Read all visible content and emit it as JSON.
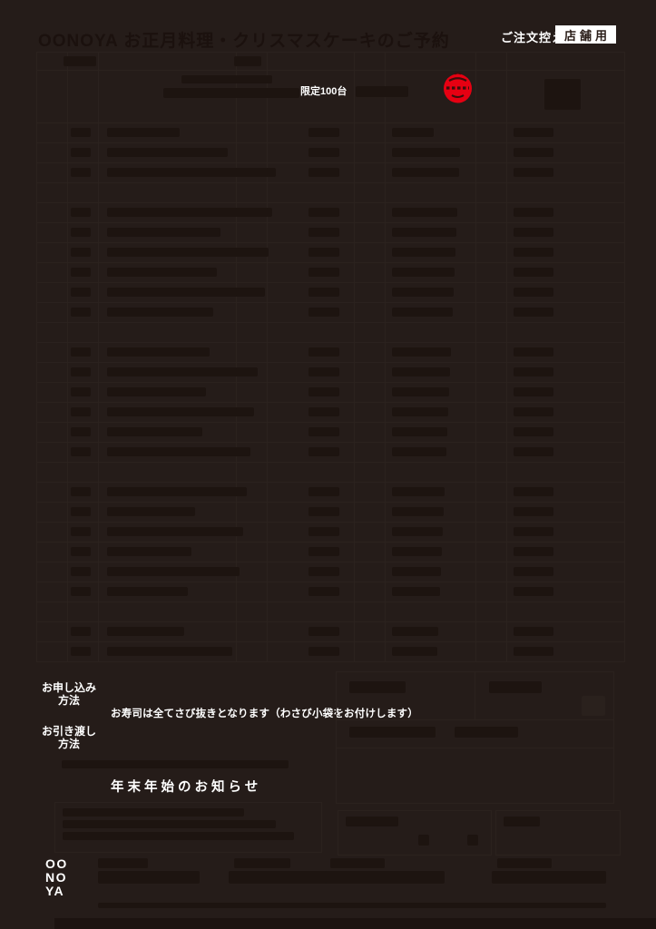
{
  "page": {
    "faint_title": "OONOYA お正月料理・クリスマスケーキのご予約",
    "order_copy_label": "ご注文控え",
    "store_use_label": "店舗用",
    "limited_label": "限定100台"
  },
  "left_column": {
    "application_label_line1": "お申し込み",
    "application_label_line2": "方法",
    "handover_label_line1": "お引き渡し",
    "handover_label_line2": "方法"
  },
  "notices": {
    "wasabi_notice": "お寿司は全てさび抜きとなります（わさび小袋をお付けします）",
    "year_end_title": "年末年始のお知らせ"
  },
  "brand_logo": {
    "line1": "OO",
    "line2": "NO",
    "line3": "YA"
  },
  "colors": {
    "background": "#251c19",
    "stamp_red": "#e60012",
    "text_white": "#ffffff"
  }
}
